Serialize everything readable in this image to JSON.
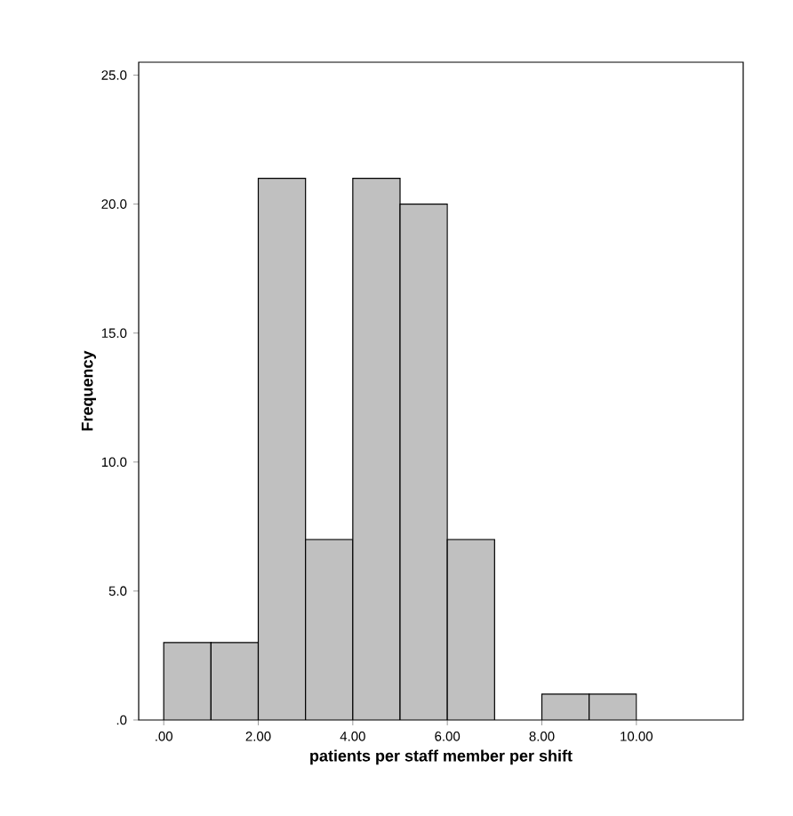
{
  "chart_data": {
    "type": "histogram",
    "xlabel": "patients per staff member per shift",
    "ylabel": "Frequency",
    "bins": [
      0,
      1,
      2,
      3,
      4,
      5,
      6,
      7,
      8,
      9,
      10
    ],
    "values": [
      3,
      3,
      21,
      7,
      21,
      20,
      7,
      0,
      1,
      1
    ],
    "color": "#c0c0c0",
    "xlim": [
      -0.53,
      12.26
    ],
    "ylim": [
      0,
      25.5
    ],
    "xticks": [
      {
        "value": 0,
        "label": ".00"
      },
      {
        "value": 2,
        "label": "2.00"
      },
      {
        "value": 4,
        "label": "4.00"
      },
      {
        "value": 6,
        "label": "6.00"
      },
      {
        "value": 8,
        "label": "8.00"
      },
      {
        "value": 10,
        "label": "10.00"
      }
    ],
    "yticks": [
      {
        "value": 0,
        "label": ".0"
      },
      {
        "value": 5,
        "label": "5.0"
      },
      {
        "value": 10,
        "label": "10.0"
      },
      {
        "value": 15,
        "label": "15.0"
      },
      {
        "value": 20,
        "label": "20.0"
      },
      {
        "value": 25,
        "label": "25.0"
      }
    ]
  }
}
